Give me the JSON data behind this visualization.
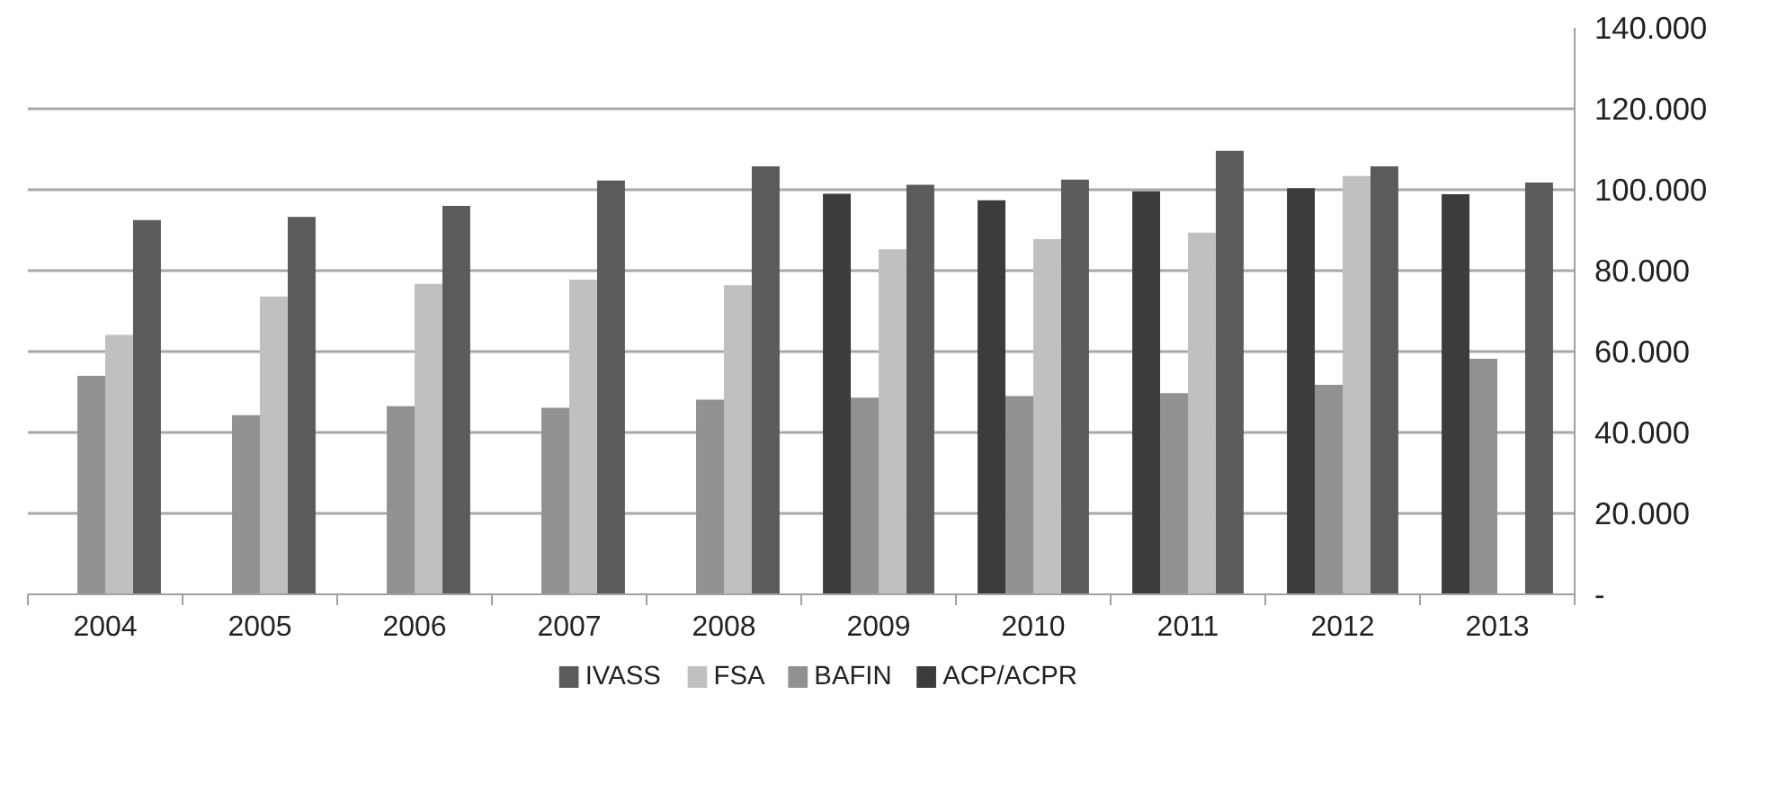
{
  "chart_data": {
    "type": "bar",
    "categories": [
      "2004",
      "2005",
      "2006",
      "2007",
      "2008",
      "2009",
      "2010",
      "2011",
      "2012",
      "2013"
    ],
    "series": [
      {
        "name": "IVASS",
        "color": "#5b5b5b",
        "values": [
          92500,
          93300,
          96000,
          102300,
          105800,
          101200,
          102500,
          109600,
          105800,
          101800
        ]
      },
      {
        "name": "FSA",
        "color": "#c0c0c0",
        "values": [
          64100,
          73600,
          76700,
          77800,
          76400,
          85300,
          87800,
          89400,
          103400,
          null
        ]
      },
      {
        "name": "BAFIN",
        "color": "#919191",
        "values": [
          54000,
          44300,
          46500,
          46100,
          48100,
          48600,
          49000,
          49700,
          51800,
          58200
        ]
      },
      {
        "name": "ACP/ACPR",
        "color": "#3c3c3c",
        "values": [
          null,
          null,
          null,
          null,
          null,
          99000,
          97400,
          99600,
          100400,
          98900
        ]
      }
    ],
    "ylim": [
      0,
      140000
    ],
    "yticks": [
      {
        "value": 0,
        "label": "-"
      },
      {
        "value": 20000,
        "label": "20.000"
      },
      {
        "value": 40000,
        "label": "40.000"
      },
      {
        "value": 60000,
        "label": "60.000"
      },
      {
        "value": 80000,
        "label": "80.000"
      },
      {
        "value": 100000,
        "label": "100.000"
      },
      {
        "value": 120000,
        "label": "120.000"
      },
      {
        "value": 140000,
        "label": "140.000"
      }
    ],
    "grid": "y",
    "legend": "bottom"
  }
}
